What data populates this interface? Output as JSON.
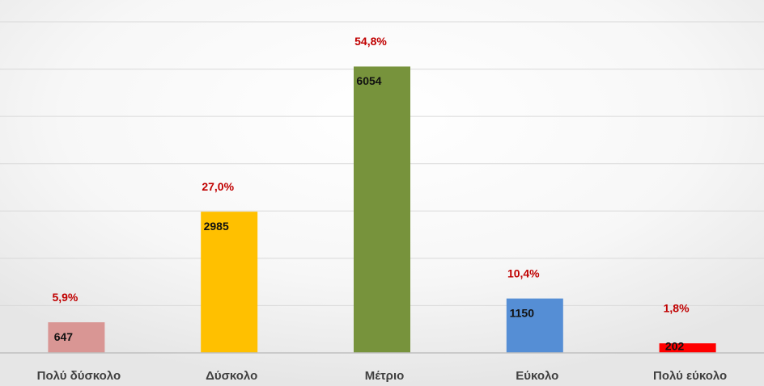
{
  "chart_data": {
    "type": "bar",
    "categories": [
      "Πολύ δύσκολο",
      "Δύσκολο",
      "Μέτριο",
      "Εύκολο",
      "Πολύ εύκολο"
    ],
    "values": [
      647,
      2985,
      6054,
      1150,
      202
    ],
    "percent_labels": [
      "5,9%",
      "27,0%",
      "54,8%",
      "10,4%",
      "1,8%"
    ],
    "colors": [
      "#d99694",
      "#ffc000",
      "#77933c",
      "#558ed5",
      "#ff0000"
    ],
    "ylim": [
      0,
      7000
    ],
    "yticks": [
      0,
      1000,
      2000,
      3000,
      4000,
      5000,
      6000,
      7000
    ],
    "grid": true
  }
}
